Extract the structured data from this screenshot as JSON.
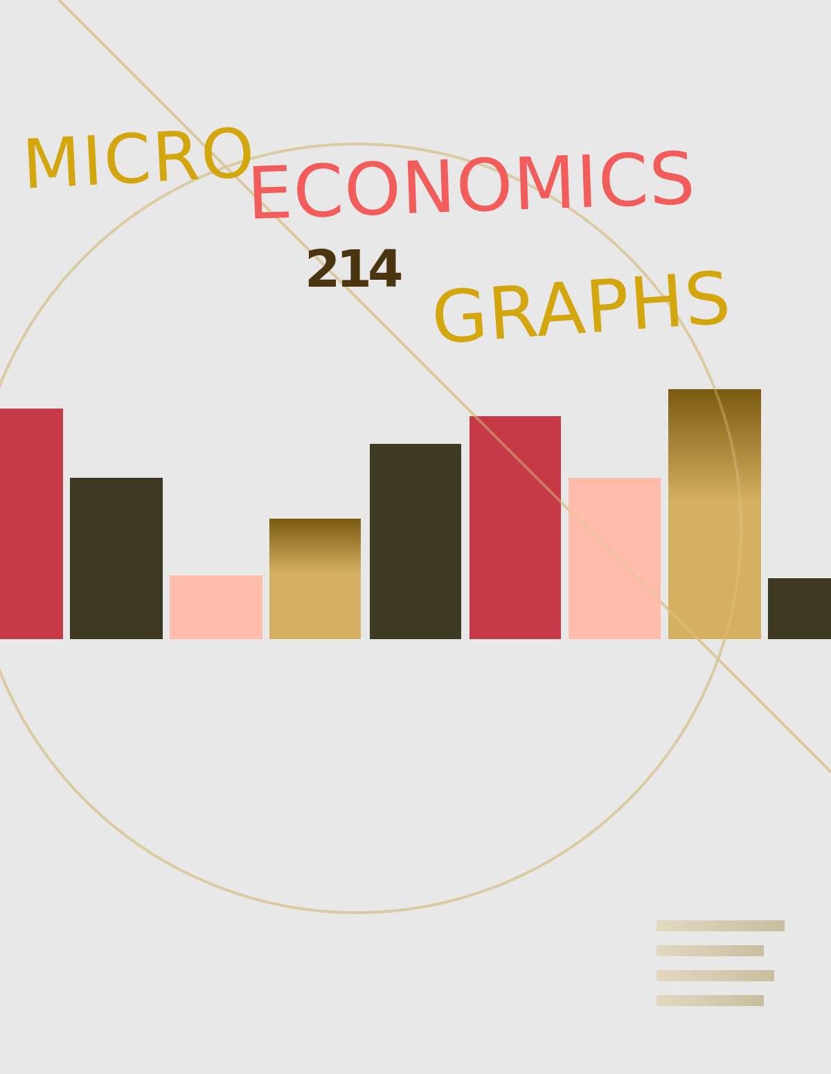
{
  "cover": {
    "title_part1": "MICRO",
    "title_part2": "ECONOMICS",
    "course_number": "214",
    "subtitle": "GRAPHS"
  },
  "colors": {
    "background": "#e8e8e8",
    "micro": "#d4a60e",
    "economics": "#f25c5a",
    "number": "#4a3510",
    "graphs": "#d4a60e",
    "red": "#c53a46",
    "dark": "#3f3823",
    "pink": "#ffbcaa",
    "gold_top": "#7a5a10",
    "gold_bottom": "#d4b060",
    "line": "#d8ccae"
  },
  "decorative_bars": [
    "red",
    "dark",
    "pink",
    "gold",
    "dark",
    "red",
    "pink",
    "gold",
    "dark"
  ]
}
